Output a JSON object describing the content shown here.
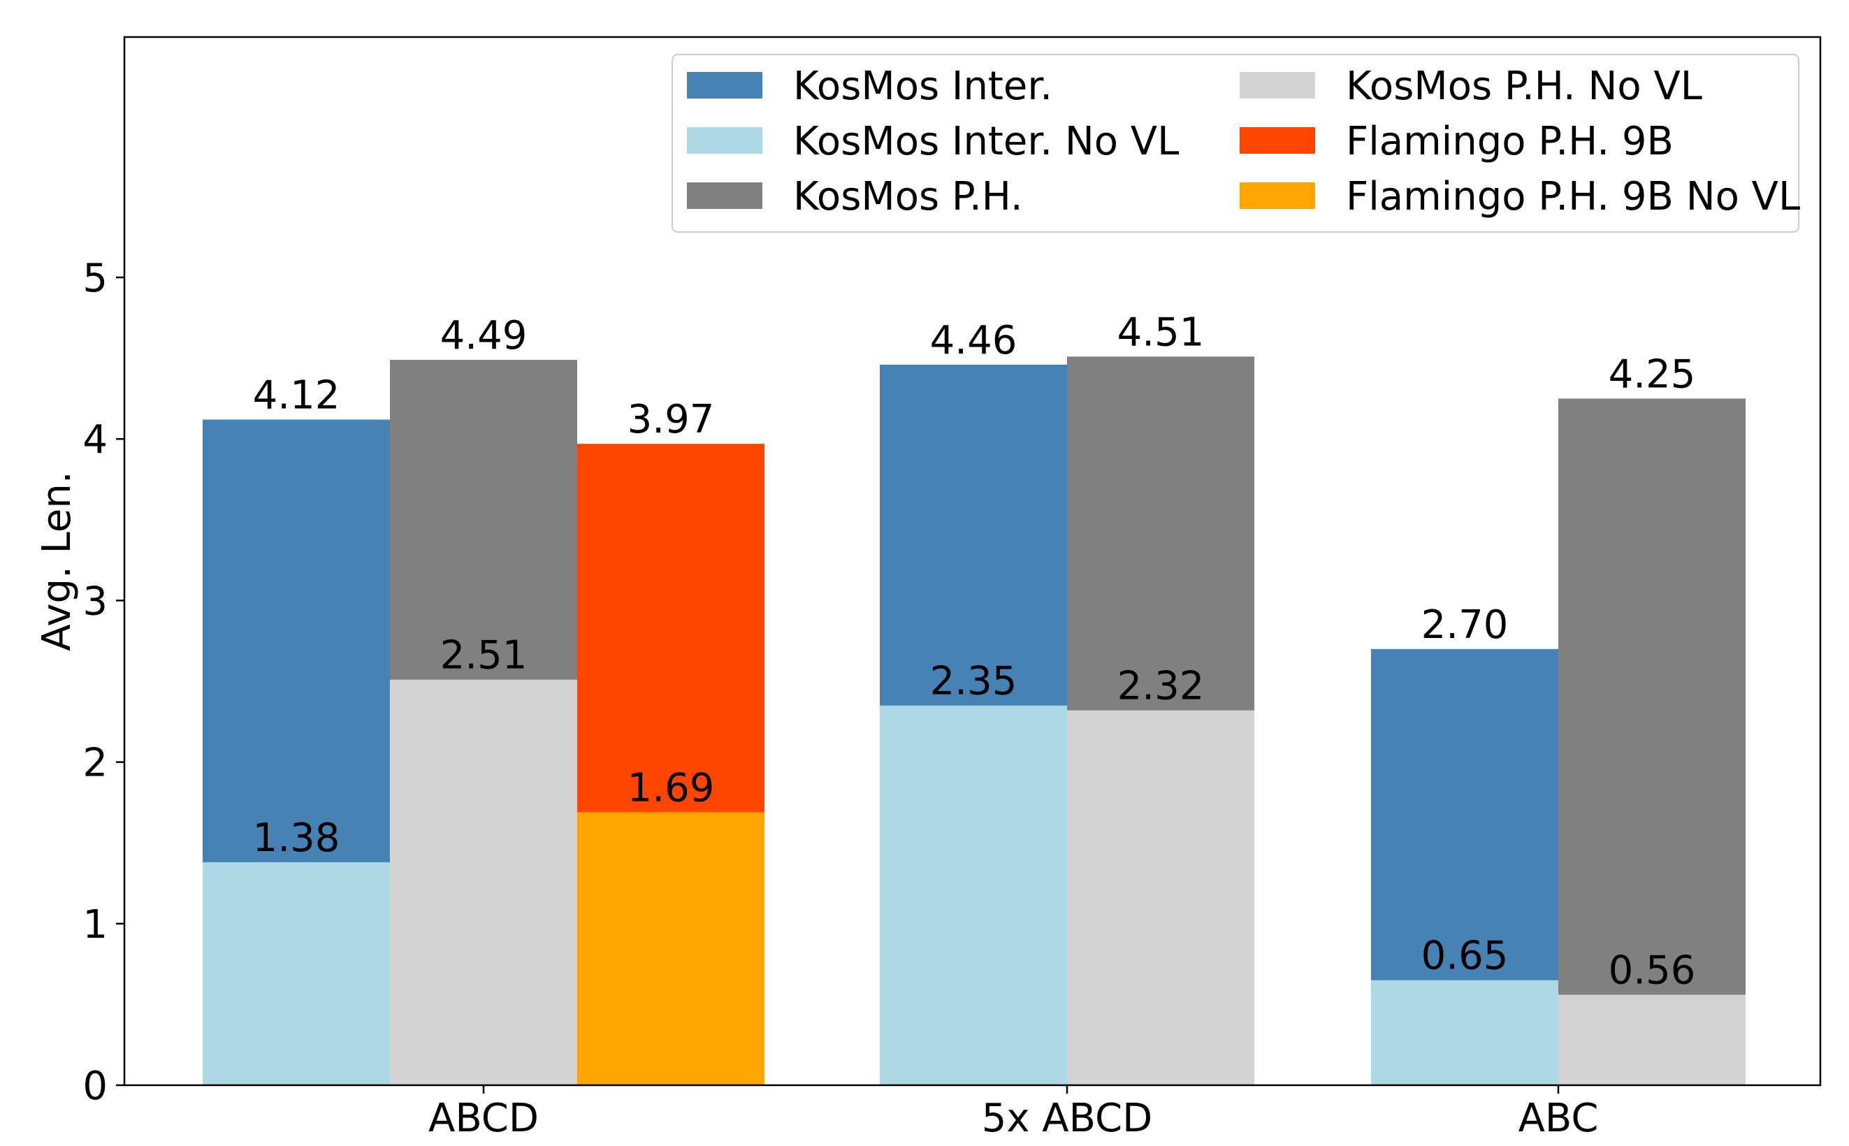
{
  "chart_data": {
    "type": "bar",
    "title": "",
    "xlabel": "",
    "ylabel": "Avg. Len.",
    "ylim": [
      0,
      6.5
    ],
    "yticks": [
      0,
      1,
      2,
      3,
      4,
      5
    ],
    "grid": false,
    "legend_position": "top-right",
    "colors": {
      "KosMos Inter.": "#4682b4",
      "KosMos Inter. No VL": "#add8e6",
      "KosMos P.H.": "#808080",
      "KosMos P.H. No VL": "#d3d3d3",
      "Flamingo P.H. 9B": "#ff4500",
      "Flamingo P.H. 9B No VL": "#ffa500"
    },
    "legend": [
      "KosMos Inter.",
      "KosMos Inter. No VL",
      "KosMos P.H.",
      "KosMos P.H. No VL",
      "Flamingo P.H. 9B",
      "Flamingo P.H. 9B No VL"
    ],
    "groups": [
      {
        "category": "ABCD",
        "bars": [
          {
            "series": "KosMos Inter.",
            "value": 4.12,
            "label": "4.12",
            "inner_series": "KosMos Inter. No VL",
            "inner_value": 1.38,
            "inner_label": "1.38"
          },
          {
            "series": "KosMos P.H.",
            "value": 4.49,
            "label": "4.49",
            "inner_series": "KosMos P.H. No VL",
            "inner_value": 2.51,
            "inner_label": "2.51"
          },
          {
            "series": "Flamingo P.H. 9B",
            "value": 3.97,
            "label": "3.97",
            "inner_series": "Flamingo P.H. 9B No VL",
            "inner_value": 1.69,
            "inner_label": "1.69"
          }
        ]
      },
      {
        "category": "5x ABCD",
        "bars": [
          {
            "series": "KosMos Inter.",
            "value": 4.46,
            "label": "4.46",
            "inner_series": "KosMos Inter. No VL",
            "inner_value": 2.35,
            "inner_label": "2.35"
          },
          {
            "series": "KosMos P.H.",
            "value": 4.51,
            "label": "4.51",
            "inner_series": "KosMos P.H. No VL",
            "inner_value": 2.32,
            "inner_label": "2.32"
          }
        ]
      },
      {
        "category": "ABC",
        "bars": [
          {
            "series": "KosMos Inter.",
            "value": 2.7,
            "label": "2.70",
            "inner_series": "KosMos Inter. No VL",
            "inner_value": 0.65,
            "inner_label": "0.65"
          },
          {
            "series": "KosMos P.H.",
            "value": 4.25,
            "label": "4.25",
            "inner_series": "KosMos P.H. No VL",
            "inner_value": 0.56,
            "inner_label": "0.56"
          }
        ]
      }
    ]
  }
}
